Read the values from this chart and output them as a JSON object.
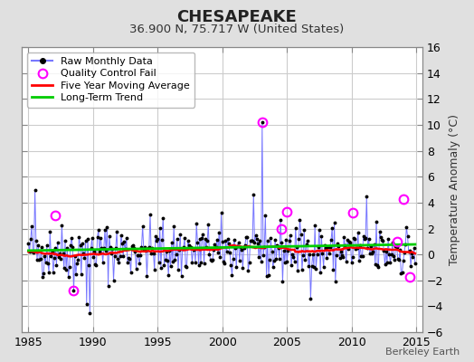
{
  "title": "CHESAPEAKE",
  "subtitle": "36.900 N, 75.717 W (United States)",
  "ylabel_right": "Temperature Anomaly (°C)",
  "credit": "Berkeley Earth",
  "xlim": [
    1984.5,
    2015.5
  ],
  "ylim": [
    -6,
    16
  ],
  "yticks": [
    -6,
    -4,
    -2,
    0,
    2,
    4,
    6,
    8,
    10,
    12,
    14,
    16
  ],
  "xticks": [
    1985,
    1990,
    1995,
    2000,
    2005,
    2010,
    2015
  ],
  "bg_color": "#e0e0e0",
  "plot_bg_color": "#ffffff",
  "grid_color": "#cccccc",
  "raw_line_color": "#7777ff",
  "raw_dot_color": "#000000",
  "qc_fail_color": "#ff00ff",
  "moving_avg_color": "#ff0000",
  "trend_color": "#00cc00",
  "seed": 42,
  "start_year": 1985,
  "end_year": 2014,
  "months_per_year": 12
}
